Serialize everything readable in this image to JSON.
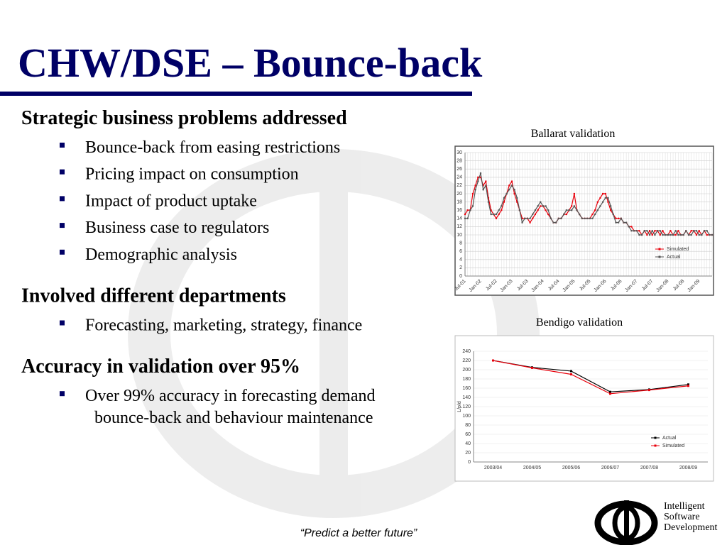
{
  "title": "CHW/DSE – Bounce-back",
  "sections": [
    {
      "heading": "Strategic business problems addressed",
      "items": [
        "Bounce-back from easing restrictions",
        "Pricing impact on consumption",
        "Impact of product uptake",
        "Business case to regulators",
        "Demographic analysis"
      ]
    },
    {
      "heading": "Involved different departments",
      "items": [
        "Forecasting, marketing, strategy, finance"
      ]
    },
    {
      "heading": "Accuracy in validation over 95%",
      "items": [
        [
          "Over 99% accuracy in forecasting demand",
          "bounce-back and behaviour maintenance"
        ]
      ]
    }
  ],
  "footer": "“Predict a better future”",
  "logo": [
    "Intelligent",
    "Software",
    "Development"
  ],
  "chart_data": [
    {
      "type": "line",
      "title": "Ballarat validation",
      "categories": [
        "Jul-01",
        null,
        null,
        null,
        null,
        null,
        "Jan-02",
        null,
        null,
        null,
        null,
        null,
        "Jul-02",
        null,
        null,
        null,
        null,
        null,
        "Jan-03",
        null,
        null,
        null,
        null,
        null,
        "Jul-03",
        null,
        null,
        null,
        null,
        null,
        "Jan-04",
        null,
        null,
        null,
        null,
        null,
        "Jul-04",
        null,
        null,
        null,
        null,
        null,
        "Jan-05",
        null,
        null,
        null,
        null,
        null,
        "Jul-05",
        null,
        null,
        null,
        null,
        null,
        "Jan-06",
        null,
        null,
        null,
        null,
        null,
        "Jul-06",
        null,
        null,
        null,
        null,
        null,
        "Jan-07",
        null,
        null,
        null,
        null,
        null,
        "Jul-07",
        null,
        null,
        null,
        null,
        null,
        "Jan-08",
        null,
        null,
        null,
        null,
        null,
        "Jul-08",
        null,
        null,
        null,
        null,
        null,
        "Jan-09",
        null,
        null,
        null,
        null,
        null
      ],
      "series": [
        {
          "name": "Simulated",
          "color": "#e8000b",
          "values": [
            15,
            16,
            16,
            20,
            22,
            24,
            24,
            22,
            23,
            19,
            16,
            15,
            14,
            15,
            16,
            18,
            20,
            22,
            23,
            20,
            18,
            16,
            14,
            14,
            14,
            13,
            14,
            15,
            16,
            17,
            17,
            16,
            15,
            14,
            13,
            13,
            14,
            14,
            15,
            15,
            16,
            17,
            20,
            16,
            15,
            14,
            14,
            14,
            14,
            15,
            16,
            18,
            19,
            20,
            20,
            18,
            16,
            15,
            14,
            14,
            14,
            13,
            13,
            12,
            12,
            11,
            11,
            11,
            10,
            11,
            10,
            11,
            10,
            11,
            11,
            10,
            11,
            10,
            10,
            11,
            10,
            10,
            11,
            10,
            10,
            11,
            10,
            11,
            11,
            10,
            11,
            10,
            11,
            10,
            10,
            10
          ]
        },
        {
          "name": "Actual",
          "color": "#555555",
          "values": [
            14,
            14,
            16,
            17,
            21,
            23,
            25,
            21,
            22,
            18,
            15,
            15,
            15,
            16,
            17,
            19,
            20,
            21,
            22,
            21,
            19,
            16,
            13,
            14,
            14,
            14,
            15,
            16,
            17,
            18,
            17,
            17,
            16,
            14,
            13,
            13,
            14,
            14,
            15,
            16,
            16,
            16,
            17,
            16,
            15,
            14,
            14,
            14,
            14,
            14,
            15,
            16,
            17,
            18,
            19,
            19,
            17,
            15,
            13,
            13,
            14,
            13,
            13,
            12,
            11,
            11,
            11,
            10,
            10,
            11,
            11,
            10,
            11,
            10,
            11,
            11,
            10,
            10,
            10,
            10,
            10,
            11,
            10,
            10,
            10,
            11,
            10,
            10,
            11,
            11,
            10,
            10,
            11,
            11,
            10,
            10
          ]
        }
      ],
      "ylim": [
        0,
        30
      ],
      "yticks": [
        0,
        2,
        4,
        6,
        8,
        10,
        12,
        14,
        16,
        18,
        20,
        22,
        24,
        26,
        28,
        30
      ],
      "grid": true,
      "legend": "lower right"
    },
    {
      "type": "line",
      "title": "Bendigo validation",
      "y_label": "L/p/d",
      "categories": [
        "2003/04",
        "2004/05",
        "2005/06",
        "2006/07",
        "2007/08",
        "2008/09"
      ],
      "series": [
        {
          "name": "Actual",
          "color": "#000000",
          "values": [
            220,
            205,
            197,
            152,
            157,
            168
          ]
        },
        {
          "name": "Simulated",
          "color": "#e8000b",
          "values": [
            220,
            204,
            190,
            148,
            156,
            165
          ]
        }
      ],
      "ylim": [
        0,
        240
      ],
      "yticks": [
        0,
        20,
        40,
        60,
        80,
        100,
        120,
        140,
        160,
        180,
        200,
        220,
        240
      ],
      "grid": true,
      "legend": "lower right"
    }
  ]
}
